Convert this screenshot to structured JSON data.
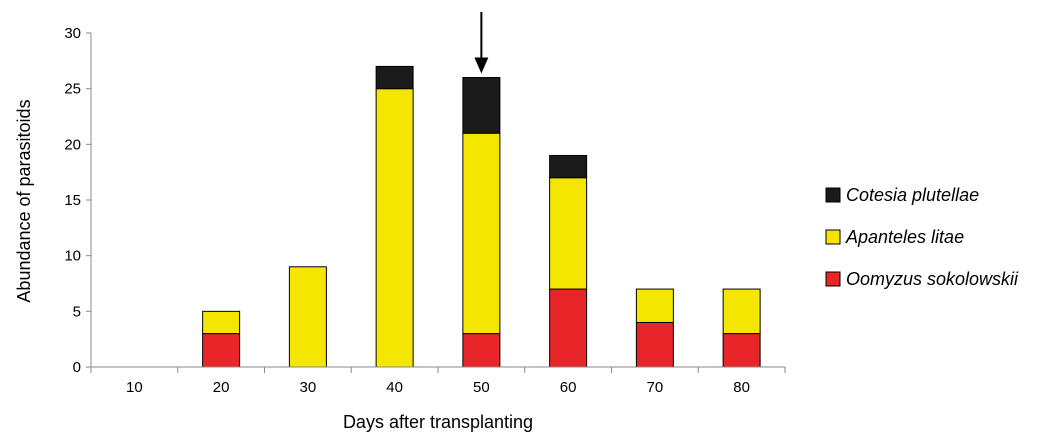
{
  "chart_data": {
    "type": "bar",
    "stacked": true,
    "categories": [
      "10",
      "20",
      "30",
      "40",
      "50",
      "60",
      "70",
      "80"
    ],
    "series": [
      {
        "name": "Oomyzus sokolowskii",
        "color": "#e8262a",
        "values": [
          0,
          3,
          0,
          0,
          3,
          7,
          4,
          3
        ]
      },
      {
        "name": "Apanteles litae",
        "color": "#f4e600",
        "values": [
          0,
          2,
          9,
          25,
          18,
          10,
          3,
          4
        ]
      },
      {
        "name": "Cotesia plutellae",
        "color": "#1a1a1a",
        "values": [
          0,
          0,
          0,
          2,
          5,
          2,
          0,
          0
        ]
      }
    ],
    "xlabel": "Days after transplanting",
    "ylabel": "Abundance of parasitoids",
    "ylim": [
      0,
      30
    ],
    "yticks": [
      "0",
      "5",
      "10",
      "15",
      "20",
      "25",
      "30"
    ],
    "grid": false,
    "legend": {
      "position": "right",
      "order": [
        "Cotesia plutellae",
        "Apanteles litae",
        "Oomyzus sokolowskii"
      ]
    },
    "annotations": [
      {
        "type": "arrow",
        "category": "50",
        "direction": "down"
      }
    ]
  }
}
